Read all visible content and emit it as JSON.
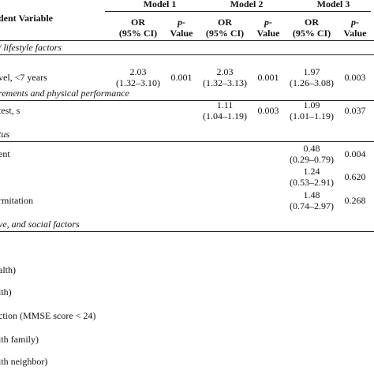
{
  "header": {
    "label": "dent Variable",
    "models": [
      "Model 1",
      "Model 2",
      "Model 3"
    ],
    "or": "OR",
    "ci": "(95% CI)",
    "p_prefix": "p-",
    "p_suffix": "Value"
  },
  "rows": [
    {
      "section": "/ lifestyle factors"
    },
    {
      "label": "vel, <7 years",
      "m1": {
        "or": "2.03",
        "ci": "(1.32–3.10)",
        "p": "0.001"
      },
      "m2": {
        "or": "2.03",
        "ci": "(1.32–3.13)",
        "p": "0.001"
      },
      "m3": {
        "or": "1.97",
        "ci": "(1.26–3.08)",
        "p": "0.003"
      }
    },
    {
      "section": "rements and physical performance"
    },
    {
      "label": "test, s",
      "m2": {
        "or": "1.11",
        "ci": "(1.04–1.19)",
        "p": "0.003"
      },
      "m3": {
        "or": "1.09",
        "ci": "(1.01–1.19)",
        "p": "0.037"
      }
    },
    {
      "section": "tus"
    },
    {
      "label": "ent",
      "m3": {
        "or": "0.48",
        "ci": "(0.29–0.79)",
        "p": "0.004"
      }
    },
    {
      "m3": {
        "or": "1.24",
        "ci": "(0.53–2.91)",
        "p": "0.620"
      }
    },
    {
      "label": "rmitation",
      "m3": {
        "or": "1.48",
        "ci": "(0.74–2.97)",
        "p": "0.268"
      }
    },
    {
      "section": "ve, and social factors"
    },
    {
      "label": "alth)"
    },
    {
      "label": "lth)"
    },
    {
      "label": "ction (MMSE score < 24)"
    },
    {
      "label": "ith family)"
    },
    {
      "label": "ith neighbor)"
    }
  ]
}
